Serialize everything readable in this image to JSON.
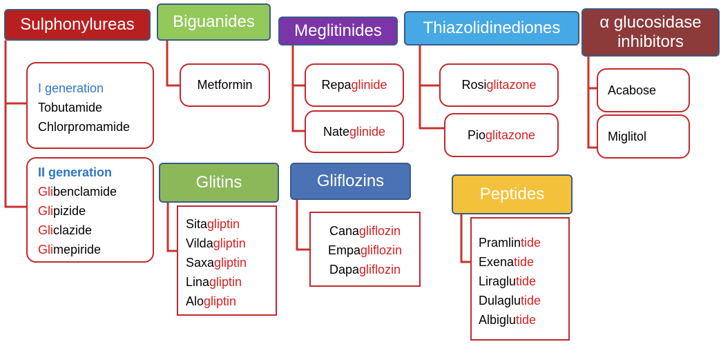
{
  "headers": {
    "sulphonylureas": "Sulphonylureas",
    "biguanides": "Biguanides",
    "meglitinides": "Meglitinides",
    "thiazolidinediones": "Thiazolidinediones",
    "alpha_gi_line1": "α glucosidase",
    "alpha_gi_line2": "inhibitors",
    "glitins": "Glitins",
    "gliflozins": "Gliflozins",
    "peptides": "Peptides"
  },
  "colors": {
    "sulphonylureas": "#b81f1f",
    "biguanides": "#92c95a",
    "meglitinides": "#7a35a8",
    "thiazolidinediones": "#46a8e4",
    "alpha_gi": "#8c3a3a",
    "glitins": "#8cb85a",
    "gliflozins": "#4a72b5",
    "peptides": "#f3c13a",
    "connector": "#c8322f"
  },
  "sulphonylureas": {
    "gen1": {
      "title": "I generation",
      "drugs": [
        "Tobutamide",
        "Chlorpromamide"
      ]
    },
    "gen2": {
      "title": "II generation",
      "drugs": [
        {
          "prefix": "Gli",
          "rest": "benclamide"
        },
        {
          "prefix": "Gli",
          "rest": "pizide"
        },
        {
          "prefix": "Gli",
          "rest": "clazide"
        },
        {
          "prefix": "Gli",
          "rest": "mepiride"
        }
      ]
    }
  },
  "biguanides": {
    "drugs": [
      "Metformin"
    ]
  },
  "meglitinides": {
    "drugs": [
      {
        "prefix": "Repa",
        "suffix": "glinide"
      },
      {
        "prefix": "Nate",
        "suffix": "glinide"
      }
    ]
  },
  "thiazolidinediones": {
    "drugs": [
      {
        "prefix": "Rosi",
        "suffix": "glitazone"
      },
      {
        "prefix": "Pio",
        "suffix": "glitazone"
      }
    ]
  },
  "alpha_gi": {
    "drugs": [
      "Acabose",
      "Miglitol"
    ]
  },
  "glitins": {
    "drugs": [
      {
        "prefix": "Sita",
        "suffix": "gliptin"
      },
      {
        "prefix": "Vilda",
        "suffix": "gliptin"
      },
      {
        "prefix": "Saxa",
        "suffix": "gliptin"
      },
      {
        "prefix": "Lina",
        "suffix": "gliptin"
      },
      {
        "prefix": "Alo",
        "suffix": "gliptin"
      }
    ]
  },
  "gliflozins": {
    "drugs": [
      {
        "prefix": "Cana",
        "suffix": "gliflozin"
      },
      {
        "prefix": "Empa",
        "suffix": "gliflozin"
      },
      {
        "prefix": "Dapa",
        "suffix": "gliflozin"
      }
    ]
  },
  "peptides": {
    "drugs": [
      {
        "prefix": "Pramlin",
        "suffix": "tide"
      },
      {
        "prefix": "Exena",
        "suffix": "tide"
      },
      {
        "prefix": "Liraglu",
        "suffix": "tide"
      },
      {
        "prefix": "Dulaglu",
        "suffix": "tide"
      },
      {
        "prefix": "Albiglu",
        "suffix": "tide"
      }
    ]
  }
}
